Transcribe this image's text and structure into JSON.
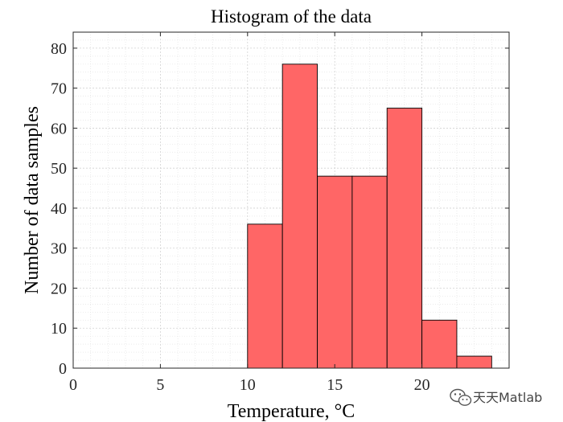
{
  "chart_data": {
    "type": "bar",
    "title": "Histogram of the data",
    "xlabel": "Temperature, °C",
    "ylabel": "Number of data samples",
    "bin_edges": [
      10,
      12,
      14,
      16,
      18,
      20,
      22,
      24
    ],
    "values": [
      36,
      76,
      48,
      48,
      65,
      12,
      3
    ],
    "xlim": [
      0,
      25
    ],
    "ylim": [
      0,
      84
    ],
    "xticks": [
      0,
      5,
      10,
      15,
      20
    ],
    "yticks": [
      0,
      10,
      20,
      30,
      40,
      50,
      60,
      70,
      80
    ],
    "grid": true,
    "minor_grid": true,
    "bar_color": "#ff6666",
    "edge_color": "#000000"
  },
  "watermark": {
    "text": "天天Matlab",
    "icon": "wechat-icon"
  }
}
